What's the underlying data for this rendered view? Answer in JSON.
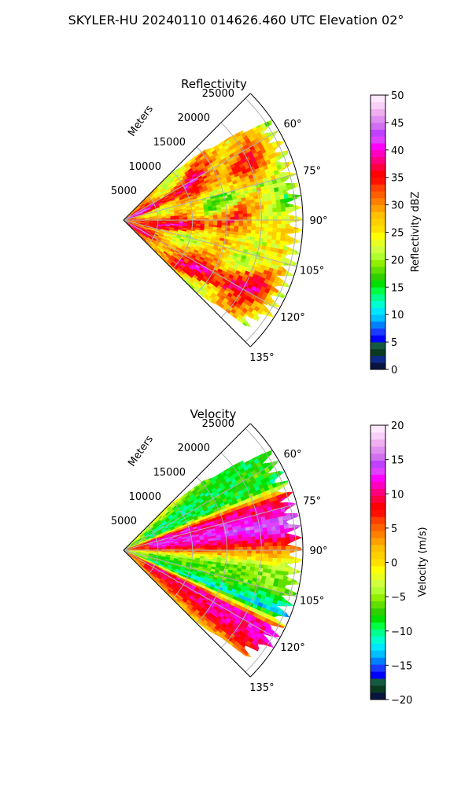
{
  "figure_title": "SKYLER-HU  20240110  014626.460 UTC Elevation 02°",
  "chart_data": [
    {
      "type": "heatmap",
      "title": "Reflectivity",
      "projection": "polar sector (PPI)",
      "radial_label": "Meters",
      "range_ticks": [
        5000,
        10000,
        15000,
        20000,
        25000
      ],
      "range_tick_labels": [
        "5000",
        "10000",
        "15000",
        "20000",
        "25000"
      ],
      "azimuth_ticks": [
        60,
        75,
        90,
        105,
        120,
        135
      ],
      "azimuth_tick_labels": [
        "60°",
        "75°",
        "90°",
        "105°",
        "120°",
        "135°"
      ],
      "azimuth_range": [
        45,
        135
      ],
      "range_max": 26000,
      "colorbar": {
        "label": "Reflectivity dBZ",
        "range": [
          0,
          50
        ],
        "ticks": [
          0,
          5,
          10,
          15,
          20,
          25,
          30,
          35,
          40,
          45,
          50
        ],
        "tick_labels": [
          "0",
          "5",
          "10",
          "15",
          "20",
          "25",
          "30",
          "35",
          "40",
          "45",
          "50"
        ],
        "colors": [
          "#0a1440",
          "#0b2a8a",
          "#0a3a20",
          "#155a40",
          "#0000ff",
          "#1a3cff",
          "#0080ff",
          "#00c0ff",
          "#00e6ff",
          "#00ffd0",
          "#00ff90",
          "#00ff40",
          "#00e000",
          "#30d000",
          "#60e000",
          "#90f000",
          "#b0ff30",
          "#d0ff40",
          "#e8ff20",
          "#ffff00",
          "#ffe000",
          "#ffd000",
          "#ffc000",
          "#ffa000",
          "#ff8000",
          "#ff6000",
          "#ff4000",
          "#ff1000",
          "#ff0000",
          "#ff0040",
          "#ff0080",
          "#ff00c0",
          "#ff00ff",
          "#e040ff",
          "#c040ff",
          "#d070f0",
          "#e090f0",
          "#f0b0f0",
          "#f8d0f8",
          "#ffe8ff"
        ]
      },
      "grid": true,
      "description_values": "dominant 25–35 dBZ (yellow/orange), 35–40 dBZ bands (red) near radar and in streaks, 20–25 dBZ at far edge"
    },
    {
      "type": "heatmap",
      "title": "Velocity",
      "projection": "polar sector (PPI)",
      "radial_label": "Meters",
      "range_ticks": [
        5000,
        10000,
        15000,
        20000,
        25000
      ],
      "range_tick_labels": [
        "5000",
        "10000",
        "15000",
        "20000",
        "25000"
      ],
      "azimuth_ticks": [
        60,
        75,
        90,
        105,
        120,
        135
      ],
      "azimuth_tick_labels": [
        "60°",
        "75°",
        "90°",
        "105°",
        "120°",
        "135°"
      ],
      "azimuth_range": [
        45,
        135
      ],
      "range_max": 26000,
      "colorbar": {
        "label": "Velocity (m/s)",
        "range": [
          -20,
          20
        ],
        "ticks": [
          -20,
          -15,
          -10,
          -5,
          0,
          5,
          10,
          15,
          20
        ],
        "tick_labels": [
          "−20",
          "−15",
          "−10",
          "−5",
          "0",
          "5",
          "10",
          "15",
          "20"
        ],
        "colors": [
          "#0a1440",
          "#0a3a20",
          "#155a40",
          "#0000ff",
          "#1a3cff",
          "#0080ff",
          "#00c0ff",
          "#00e6ff",
          "#00ffd0",
          "#00ff90",
          "#00ff40",
          "#00e000",
          "#30d000",
          "#60e000",
          "#90f000",
          "#b0ff30",
          "#d0ff40",
          "#e8ff20",
          "#ffff00",
          "#ffe000",
          "#ffd000",
          "#ffc000",
          "#ffa000",
          "#ff8000",
          "#ff6000",
          "#ff4000",
          "#ff1000",
          "#ff0000",
          "#ff0040",
          "#ff0080",
          "#ff00c0",
          "#ff00ff",
          "#e040ff",
          "#c040ff",
          "#d070f0",
          "#e090f0",
          "#f0b0f0",
          "#f8d0f8",
          "#ffe8ff"
        ]
      },
      "grid": true,
      "description_values": "banded pattern: green/cyan (−5 to −12 m/s) near 60°, magenta (+12 to +15 m/s) near 80°, red/yellow near 90–100°, cyan/magenta bands near 110–125°, orange/yellow near 130°"
    }
  ]
}
